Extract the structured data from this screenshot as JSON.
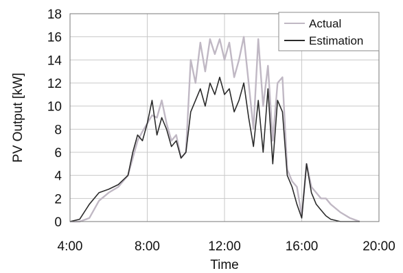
{
  "chart_data": {
    "type": "line",
    "title": "",
    "xlabel": "Time",
    "ylabel": "PV Output  [kW]",
    "x_ticks": [
      "4:00",
      "8:00",
      "12:00",
      "16:00",
      "20:00"
    ],
    "x_tick_hours": [
      4,
      8,
      12,
      16,
      20
    ],
    "y_ticks": [
      "0",
      "2",
      "4",
      "6",
      "8",
      "10",
      "12",
      "14",
      "16",
      "18"
    ],
    "xlim": [
      4,
      20
    ],
    "ylim": [
      0,
      18
    ],
    "grid": true,
    "legend_position": "top-right",
    "series": [
      {
        "name": "Actual",
        "color": "#c0b8c4",
        "x": [
          4.0,
          4.5,
          5.0,
          5.5,
          6.0,
          6.5,
          7.0,
          7.25,
          7.5,
          7.75,
          8.0,
          8.25,
          8.5,
          8.75,
          9.0,
          9.25,
          9.5,
          9.75,
          10.0,
          10.25,
          10.5,
          10.75,
          11.0,
          11.25,
          11.5,
          11.75,
          12.0,
          12.25,
          12.5,
          12.75,
          13.0,
          13.25,
          13.5,
          13.75,
          14.0,
          14.25,
          14.5,
          14.75,
          15.0,
          15.25,
          15.5,
          15.75,
          16.0,
          16.25,
          16.5,
          16.75,
          17.0,
          17.25,
          17.5,
          18.0,
          18.5,
          19.0
        ],
        "y": [
          0.0,
          0.0,
          0.3,
          1.8,
          2.5,
          3.0,
          4.0,
          5.5,
          7.0,
          7.8,
          8.5,
          9.2,
          9.0,
          10.5,
          8.5,
          7.0,
          7.5,
          5.5,
          6.0,
          14.0,
          12.0,
          15.5,
          13.0,
          15.8,
          14.5,
          15.8,
          14.0,
          15.5,
          12.5,
          14.0,
          16.0,
          12.0,
          8.0,
          15.8,
          10.0,
          13.5,
          7.0,
          12.0,
          12.5,
          4.5,
          3.5,
          3.0,
          0.5,
          5.0,
          3.0,
          2.5,
          2.0,
          2.0,
          1.5,
          0.8,
          0.3,
          0.0
        ]
      },
      {
        "name": "Estimation",
        "color": "#2a2a2a",
        "x": [
          4.0,
          4.5,
          5.0,
          5.5,
          6.0,
          6.5,
          7.0,
          7.25,
          7.5,
          7.75,
          8.0,
          8.25,
          8.5,
          8.75,
          9.0,
          9.25,
          9.5,
          9.75,
          10.0,
          10.25,
          10.5,
          10.75,
          11.0,
          11.25,
          11.5,
          11.75,
          12.0,
          12.25,
          12.5,
          12.75,
          13.0,
          13.25,
          13.5,
          13.75,
          14.0,
          14.25,
          14.5,
          14.75,
          15.0,
          15.25,
          15.5,
          15.75,
          16.0,
          16.25,
          16.5,
          16.75,
          17.0,
          17.25,
          17.5,
          18.0,
          18.5,
          19.0
        ],
        "y": [
          0.0,
          0.2,
          1.5,
          2.5,
          2.8,
          3.2,
          4.0,
          6.0,
          7.5,
          7.0,
          8.5,
          10.5,
          7.5,
          9.0,
          8.0,
          6.5,
          7.0,
          5.5,
          6.0,
          9.5,
          10.5,
          11.5,
          10.0,
          12.0,
          11.0,
          12.5,
          11.0,
          11.5,
          9.5,
          10.5,
          12.0,
          9.0,
          6.5,
          10.5,
          6.0,
          11.5,
          5.0,
          10.5,
          9.5,
          4.0,
          3.0,
          1.5,
          0.3,
          5.0,
          2.5,
          1.5,
          1.0,
          0.5,
          0.2,
          0.0,
          0.0,
          0.0
        ]
      }
    ]
  }
}
